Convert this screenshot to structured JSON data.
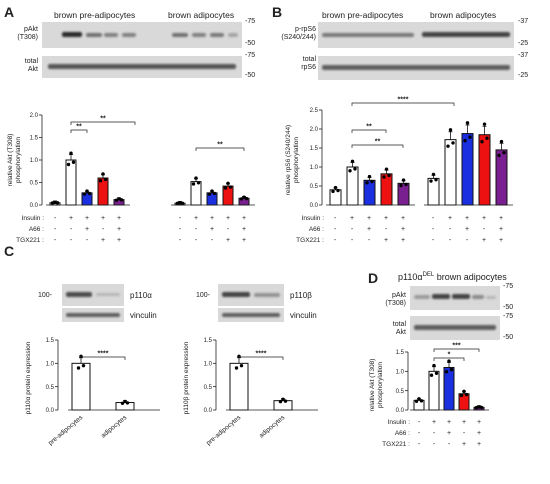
{
  "panels": {
    "A": {
      "letter": "A",
      "headers": [
        "brown pre-adipocytes",
        "brown adipocytes"
      ],
      "blots": [
        {
          "label": "pAkt\n(T308)",
          "ticks": [
            "-75",
            "-50"
          ]
        },
        {
          "label": "total\nAkt",
          "ticks": [
            "-75",
            "-50"
          ]
        }
      ]
    },
    "B": {
      "letter": "B",
      "headers": [
        "brown pre-adipocytes",
        "brown adipocytes"
      ],
      "blots": [
        {
          "label": "p-rpS6\n(S240/244)",
          "ticks": [
            "-37",
            "-25"
          ]
        },
        {
          "label": "total\nrpS6",
          "ticks": [
            "-37",
            "-25"
          ]
        }
      ]
    },
    "C": {
      "letter": "C",
      "blots": [
        {
          "protein_top": "p110α",
          "protein_bottom": "vinculin",
          "mw": "100-"
        },
        {
          "protein_top": "p110β",
          "protein_bottom": "vinculin",
          "mw": "100-"
        }
      ]
    },
    "D": {
      "letter": "D",
      "title_main": "p110α",
      "title_sup": "DEL",
      "title_rest": " brown adipocytes",
      "blots": [
        {
          "label": "pAkt\n(T308)",
          "ticks": [
            "-75",
            "-50"
          ]
        },
        {
          "label": "total\nAkt",
          "ticks": [
            "-75",
            "-50"
          ]
        }
      ]
    }
  },
  "treatment_rows": {
    "labels": [
      "Insulin :",
      "A66 :",
      "TGX221 :"
    ],
    "pattern4": [
      [
        "-",
        "+",
        "+",
        "+"
      ],
      [
        "-",
        "-",
        "+",
        "+"
      ],
      [
        "-",
        "-",
        "-",
        "+"
      ]
    ],
    "pattern5": [
      [
        "-",
        "+",
        "+",
        "+",
        "+"
      ],
      [
        "-",
        "-",
        "+",
        "-",
        "+"
      ],
      [
        "-",
        "-",
        "-",
        "+",
        "+"
      ]
    ]
  },
  "colors": {
    "control": "#ffffff",
    "insulin": "#ffffff",
    "a66": "#1a2fe0",
    "tgx221": "#ee1111",
    "combo": "#7a1f8f"
  },
  "significance": {
    "A_pre": [
      "**",
      "**"
    ],
    "A_brown": [
      "**"
    ],
    "B": [
      "****",
      "**",
      "**"
    ],
    "C_left": [
      "****"
    ],
    "C_right": [
      "****"
    ],
    "D": [
      "***",
      "*"
    ]
  },
  "chart_data": [
    {
      "panel": "A",
      "type": "bar",
      "ylabel": "relative Akt (T308)\nphosphorylation",
      "ylim": [
        0,
        2.0
      ],
      "yticks": [
        "0.0",
        "0.5",
        "1.0",
        "1.5",
        "2.0"
      ],
      "groups": [
        {
          "name": "brown pre-adipocytes",
          "values": [
            0.05,
            1.0,
            0.27,
            0.6,
            0.12
          ]
        },
        {
          "name": "brown adipocytes",
          "values": [
            0.04,
            0.52,
            0.27,
            0.42,
            0.15
          ]
        }
      ]
    },
    {
      "panel": "B",
      "type": "bar",
      "ylabel": "relative rpS6 (S240/244)\nphosphorylation",
      "ylim": [
        0,
        2.5
      ],
      "yticks": [
        "0.0",
        "0.5",
        "1.0",
        "1.5",
        "2.0",
        "2.5"
      ],
      "groups": [
        {
          "name": "brown pre-adipocytes",
          "values": [
            0.4,
            1.0,
            0.65,
            0.82,
            0.57
          ]
        },
        {
          "name": "brown adipocytes",
          "values": [
            0.7,
            1.72,
            1.88,
            1.85,
            1.45
          ]
        }
      ]
    },
    {
      "panel": "C-left",
      "type": "bar",
      "ylabel": "p110α protein expression",
      "ylim": [
        0,
        1.5
      ],
      "yticks": [
        "0.0",
        "0.5",
        "1.0",
        "1.5"
      ],
      "categories": [
        "pre-adipocytes",
        "adipocytes"
      ],
      "values": [
        1.0,
        0.16
      ]
    },
    {
      "panel": "C-right",
      "type": "bar",
      "ylabel": "p110β protein expression",
      "ylim": [
        0,
        1.5
      ],
      "yticks": [
        "0.0",
        "0.5",
        "1.0",
        "1.5"
      ],
      "categories": [
        "pre-adipocytes",
        "adipocytes"
      ],
      "values": [
        1.0,
        0.2
      ]
    },
    {
      "panel": "D",
      "type": "bar",
      "ylabel": "relative Akt (T308)\nphosphorylation",
      "ylim": [
        0,
        1.5
      ],
      "yticks": [
        "0.0",
        "0.5",
        "1.0",
        "1.5"
      ],
      "values": [
        0.25,
        1.0,
        1.1,
        0.42,
        0.07
      ]
    }
  ]
}
